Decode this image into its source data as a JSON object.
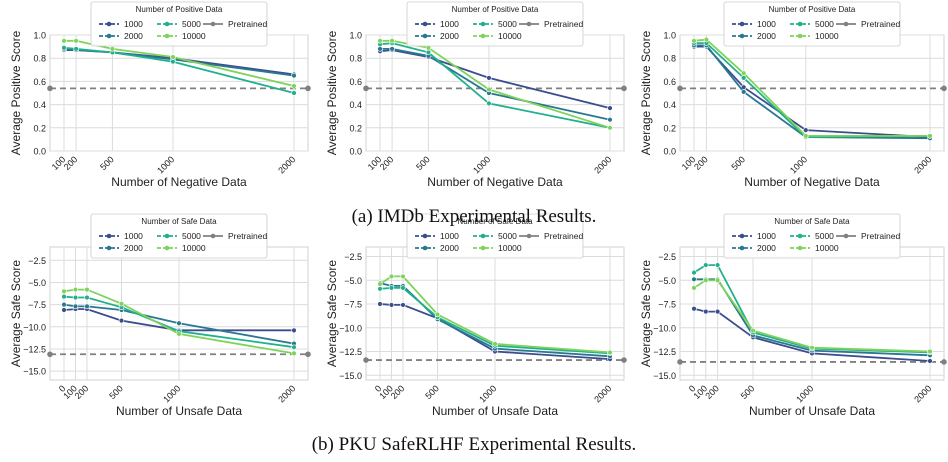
{
  "captions": {
    "a": "(a) IMDb Experimental Results.",
    "b": "(b) PKU SafeRLHF Experimental Results."
  },
  "colors": {
    "1000": "#3b4d8f",
    "2000": "#2a7890",
    "5000": "#21b08e",
    "10000": "#7ed35a",
    "pretrained": "#808080"
  },
  "chart_data": [
    {
      "type": "line",
      "panel": "a1",
      "xlabel": "Number of Negative Data",
      "ylabel": "Average Positive Score",
      "legend_title": "Number of Positive Data",
      "legend": [
        "1000",
        "2000",
        "5000",
        "10000",
        "Pretrained"
      ],
      "x": [
        100,
        200,
        500,
        1000,
        2000
      ],
      "ylim": [
        0,
        1.0
      ],
      "yticks": [
        0.0,
        0.2,
        0.4,
        0.6,
        0.8,
        1.0
      ],
      "ytick_labels": [
        "0.0",
        "0.2",
        "0.4",
        "0.6",
        "0.8",
        "1.0"
      ],
      "xticks": [
        100,
        200,
        500,
        1000,
        2000
      ],
      "pretrained": 0.54,
      "grid": true,
      "series": [
        {
          "name": "1000",
          "values": [
            0.87,
            0.87,
            0.85,
            0.8,
            0.66
          ]
        },
        {
          "name": "2000",
          "values": [
            0.88,
            0.87,
            0.85,
            0.79,
            0.65
          ]
        },
        {
          "name": "5000",
          "values": [
            0.89,
            0.88,
            0.85,
            0.77,
            0.5
          ]
        },
        {
          "name": "10000",
          "values": [
            0.95,
            0.95,
            0.88,
            0.81,
            0.56
          ]
        }
      ]
    },
    {
      "type": "line",
      "panel": "a2",
      "xlabel": "Number of Negative Data",
      "ylabel": "Average Positive Score",
      "legend_title": "Number of Positive Data",
      "legend": [
        "1000",
        "2000",
        "5000",
        "10000",
        "Pretrained"
      ],
      "x": [
        100,
        200,
        500,
        1000,
        2000
      ],
      "ylim": [
        0,
        1.0
      ],
      "yticks": [
        0.0,
        0.2,
        0.4,
        0.6,
        0.8,
        1.0
      ],
      "ytick_labels": [
        "0.0",
        "0.2",
        "0.4",
        "0.6",
        "0.8",
        "1.0"
      ],
      "xticks": [
        100,
        200,
        500,
        1000,
        2000
      ],
      "pretrained": 0.54,
      "grid": true,
      "series": [
        {
          "name": "1000",
          "values": [
            0.86,
            0.87,
            0.81,
            0.63,
            0.37
          ]
        },
        {
          "name": "2000",
          "values": [
            0.88,
            0.88,
            0.82,
            0.5,
            0.27
          ]
        },
        {
          "name": "5000",
          "values": [
            0.92,
            0.93,
            0.85,
            0.41,
            0.2
          ]
        },
        {
          "name": "10000",
          "values": [
            0.95,
            0.95,
            0.89,
            0.53,
            0.2
          ]
        }
      ]
    },
    {
      "type": "line",
      "panel": "a3",
      "xlabel": "Number of Negative Data",
      "ylabel": "Average Positive Score",
      "legend_title": "Number of Positive Data",
      "legend": [
        "1000",
        "2000",
        "5000",
        "10000",
        "Pretrained"
      ],
      "x": [
        100,
        200,
        500,
        1000,
        2000
      ],
      "ylim": [
        0,
        1.0
      ],
      "yticks": [
        0.0,
        0.2,
        0.4,
        0.6,
        0.8,
        1.0
      ],
      "ytick_labels": [
        "0.0",
        "0.2",
        "0.4",
        "0.6",
        "0.8",
        "1.0"
      ],
      "xticks": [
        100,
        200,
        500,
        1000,
        2000
      ],
      "pretrained": 0.54,
      "grid": true,
      "series": [
        {
          "name": "1000",
          "values": [
            0.9,
            0.9,
            0.55,
            0.18,
            0.12
          ]
        },
        {
          "name": "2000",
          "values": [
            0.91,
            0.91,
            0.51,
            0.12,
            0.11
          ]
        },
        {
          "name": "5000",
          "values": [
            0.93,
            0.93,
            0.63,
            0.12,
            0.13
          ]
        },
        {
          "name": "10000",
          "values": [
            0.95,
            0.96,
            0.67,
            0.13,
            0.13
          ]
        }
      ]
    },
    {
      "type": "line",
      "panel": "b1",
      "xlabel": "Number of Unsafe Data",
      "ylabel": "Average Safe Score",
      "legend_title": "Number of Safe Data",
      "legend": [
        "1000",
        "2000",
        "5000",
        "10000",
        "Pretrained"
      ],
      "x": [
        0,
        100,
        200,
        500,
        1000,
        2000
      ],
      "ylim": [
        -16,
        -1
      ],
      "yticks": [
        -15,
        -12.5,
        -10,
        -7.5,
        -5,
        -2.5
      ],
      "ytick_labels": [
        "−15.0",
        "−12.5",
        "−10.0",
        "−7.5",
        "−5.0",
        "−2.5"
      ],
      "xticks": [
        0,
        100,
        200,
        500,
        1000,
        2000
      ],
      "pretrained": -13.1,
      "grid": true,
      "series": [
        {
          "name": "1000",
          "values": [
            -8.1,
            -8.0,
            -8.0,
            -9.3,
            -10.4,
            -10.4
          ]
        },
        {
          "name": "2000",
          "values": [
            -7.5,
            -7.7,
            -7.7,
            -8.1,
            -9.6,
            -11.9
          ]
        },
        {
          "name": "5000",
          "values": [
            -6.6,
            -6.7,
            -6.7,
            -7.8,
            -10.5,
            -12.3
          ]
        },
        {
          "name": "10000",
          "values": [
            -6.0,
            -5.8,
            -5.8,
            -7.4,
            -10.8,
            -13.0
          ]
        }
      ]
    },
    {
      "type": "line",
      "panel": "b2",
      "xlabel": "Number of Unsafe Data",
      "ylabel": "Average Safe Score",
      "legend_title": "Number of Safe Data",
      "legend": [
        "1000",
        "2000",
        "5000",
        "10000",
        "Pretrained"
      ],
      "x": [
        0,
        100,
        200,
        500,
        1000,
        2000
      ],
      "ylim": [
        -15.5,
        -1.5
      ],
      "yticks": [
        -15,
        -12.5,
        -10,
        -7.5,
        -5,
        -2.5
      ],
      "ytick_labels": [
        "−15.0",
        "−12.5",
        "−10.0",
        "−7.5",
        "−5.0",
        "−2.5"
      ],
      "xticks": [
        0,
        100,
        200,
        500,
        1000,
        2000
      ],
      "pretrained": -13.4,
      "grid": true,
      "series": [
        {
          "name": "1000",
          "values": [
            -7.5,
            -7.6,
            -7.6,
            -9.0,
            -12.5,
            -13.3
          ]
        },
        {
          "name": "2000",
          "values": [
            -5.3,
            -5.6,
            -5.6,
            -9.1,
            -12.2,
            -13.0
          ]
        },
        {
          "name": "5000",
          "values": [
            -5.9,
            -5.8,
            -5.8,
            -8.9,
            -11.9,
            -12.7
          ]
        },
        {
          "name": "10000",
          "values": [
            -5.4,
            -4.6,
            -4.6,
            -8.6,
            -11.7,
            -12.6
          ]
        }
      ]
    },
    {
      "type": "line",
      "panel": "b3",
      "xlabel": "Number of Unsafe Data",
      "ylabel": "Average Safe Score",
      "legend_title": "Number of Safe Data",
      "legend": [
        "1000",
        "2000",
        "5000",
        "10000",
        "Pretrained"
      ],
      "x": [
        0,
        100,
        200,
        500,
        1000,
        2000
      ],
      "ylim": [
        -15.5,
        -1.5
      ],
      "yticks": [
        -15,
        -12.5,
        -10,
        -7.5,
        -5,
        -2.5
      ],
      "ytick_labels": [
        "−15.0",
        "−12.5",
        "−10.0",
        "−7.5",
        "−5.0",
        "−2.5"
      ],
      "xticks": [
        0,
        100,
        200,
        500,
        1000,
        2000
      ],
      "pretrained": -13.6,
      "grid": true,
      "series": [
        {
          "name": "1000",
          "values": [
            -8.0,
            -8.3,
            -8.3,
            -11.0,
            -12.7,
            -13.5
          ]
        },
        {
          "name": "2000",
          "values": [
            -4.9,
            -4.9,
            -4.9,
            -10.8,
            -12.4,
            -12.9
          ]
        },
        {
          "name": "5000",
          "values": [
            -4.2,
            -3.4,
            -3.4,
            -10.5,
            -12.2,
            -12.6
          ]
        },
        {
          "name": "10000",
          "values": [
            -5.8,
            -5.0,
            -5.0,
            -10.3,
            -12.1,
            -12.5
          ]
        }
      ]
    }
  ]
}
